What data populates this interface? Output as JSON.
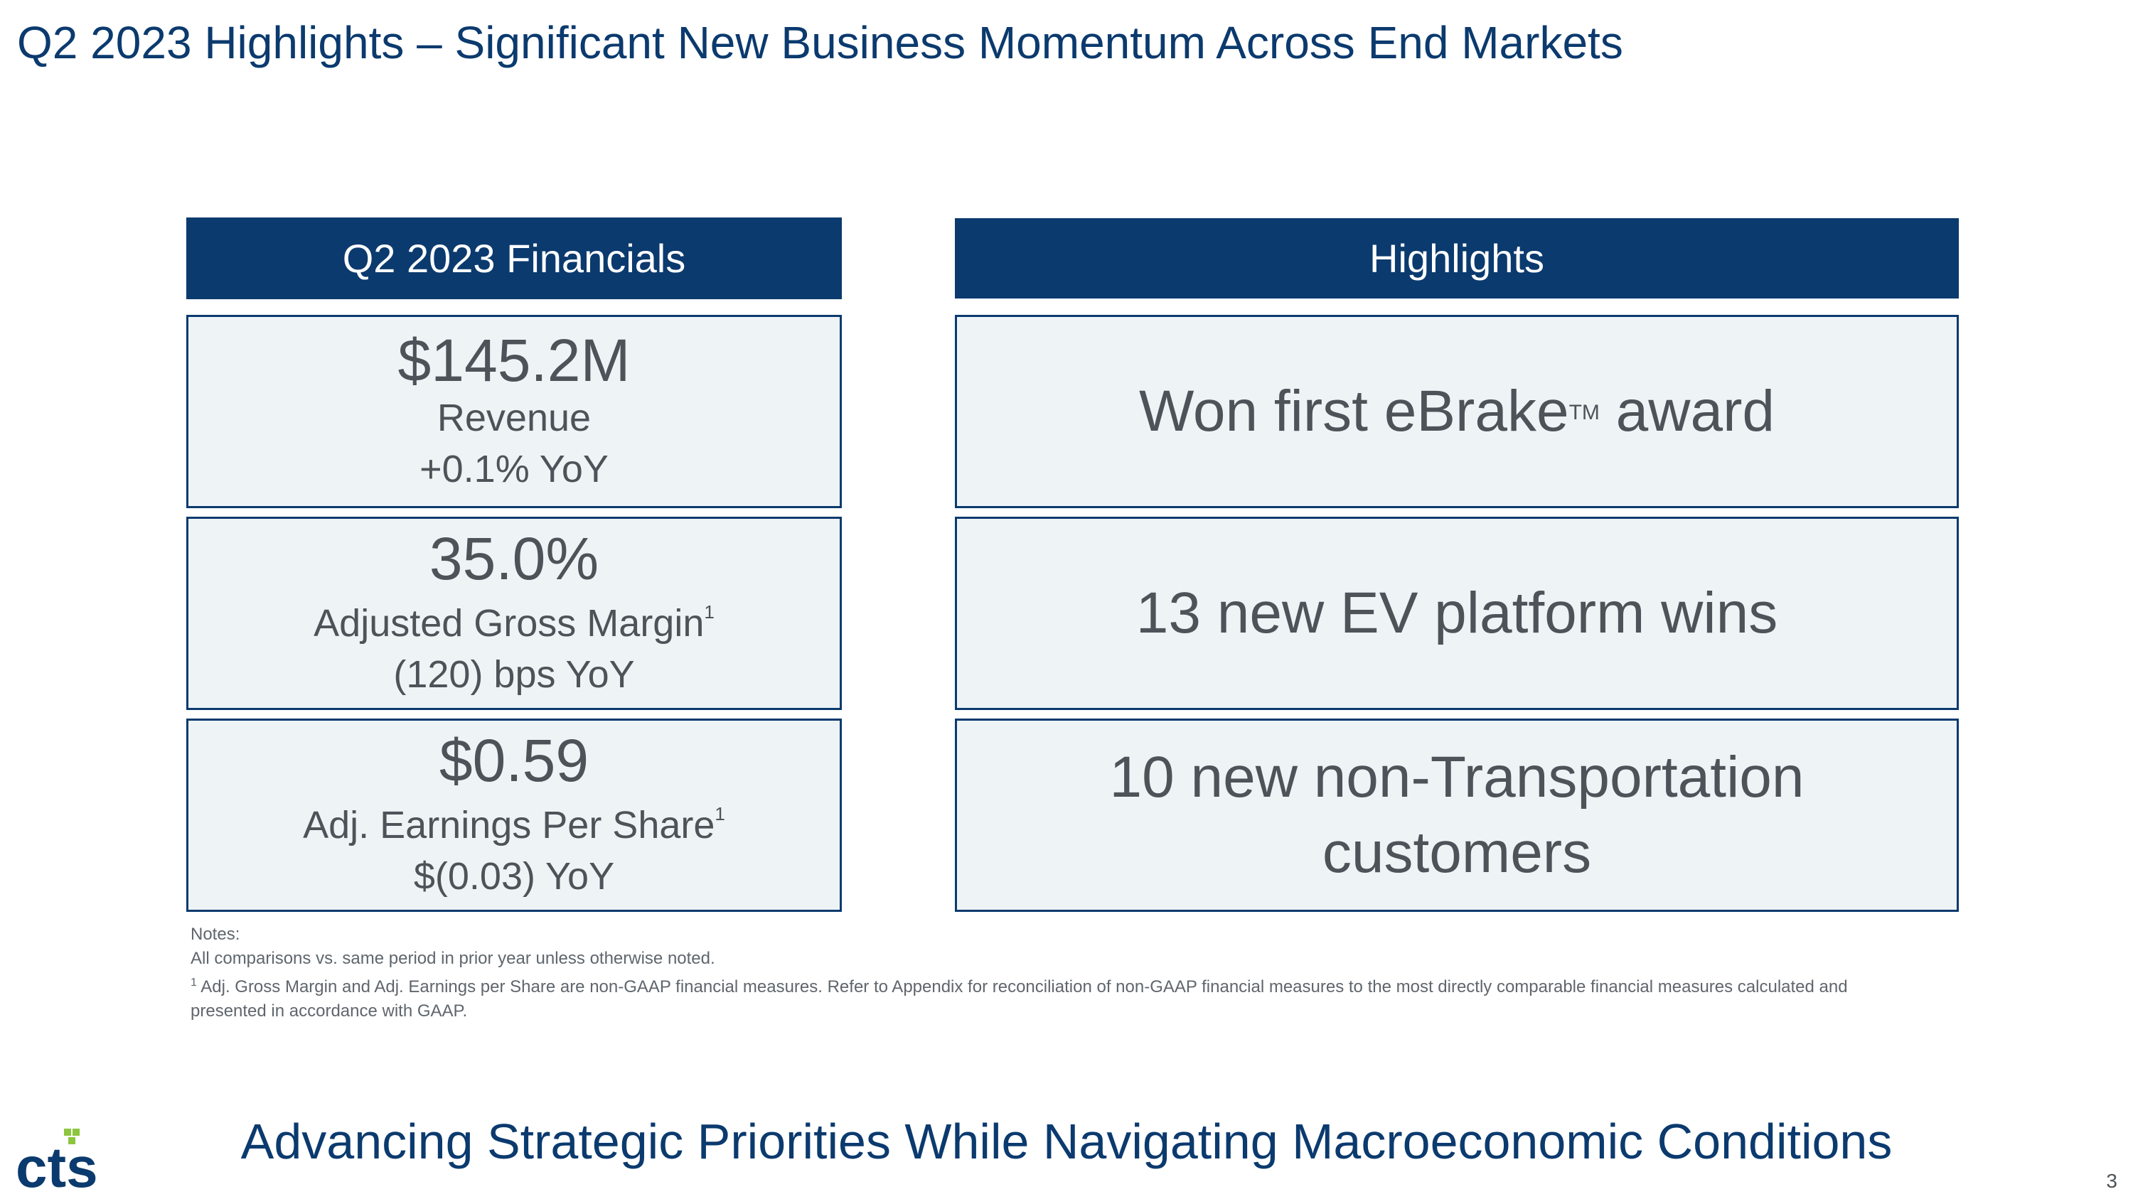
{
  "slide": {
    "title": "Q2 2023 Highlights – Significant New Business Momentum Across End Markets",
    "tagline": "Advancing Strategic Priorities While Navigating Macroeconomic Conditions",
    "page_number": "3",
    "logo_text": "cts"
  },
  "financials": {
    "header": "Q2 2023 Financials",
    "items": [
      {
        "value": "$145.2M",
        "label": "Revenue",
        "footnote": "",
        "change": "+0.1% YoY"
      },
      {
        "value": "35.0%",
        "label": "Adjusted Gross Margin",
        "footnote": "1",
        "change": "(120) bps YoY"
      },
      {
        "value": "$0.59",
        "label": "Adj. Earnings Per Share",
        "footnote": "1",
        "change": "$(0.03) YoY"
      }
    ]
  },
  "highlights": {
    "header": "Highlights",
    "items": [
      {
        "text_before": "Won first eBrake",
        "trademark": "TM",
        "text_after": " award"
      },
      {
        "text": "13 new EV platform wins"
      },
      {
        "text": "10 new non-Transportation customers"
      }
    ]
  },
  "notes": {
    "heading": "Notes:",
    "line1": "All comparisons vs. same period in prior year unless otherwise noted.",
    "footnote_marker": "1",
    "line2": " Adj. Gross Margin and Adj. Earnings per Share are non-GAAP financial measures. Refer to Appendix for reconciliation of non-GAAP financial measures to the most directly comparable financial measures calculated and presented in accordance with GAAP."
  },
  "colors": {
    "brand_navy": "#0b3a6e",
    "card_fill": "#eef3f6",
    "body_text": "#4d5358",
    "logo_green": "#8cc63f"
  }
}
